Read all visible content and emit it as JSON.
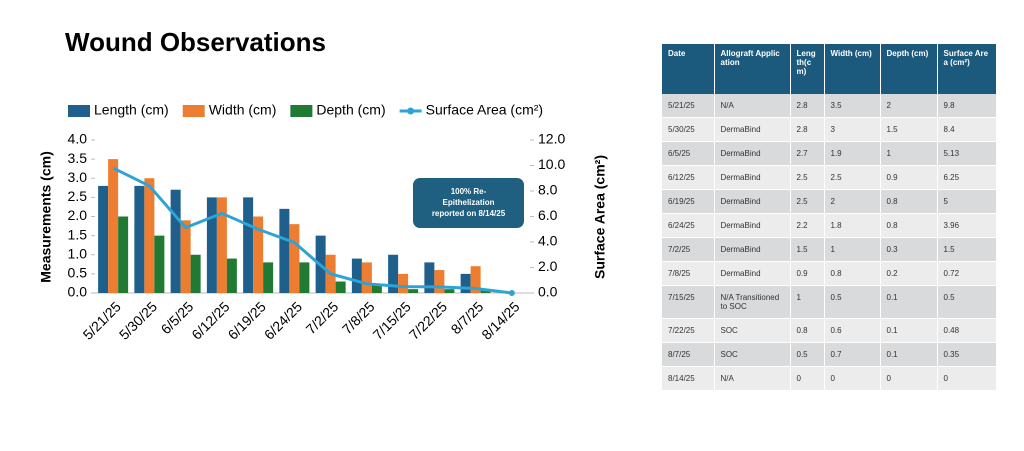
{
  "chart_data": {
    "type": "bar",
    "title": "Wound Observations",
    "categories": [
      "5/21/25",
      "5/30/25",
      "6/5/25",
      "6/12/25",
      "6/19/25",
      "6/24/25",
      "7/2/25",
      "7/8/25",
      "7/15/25",
      "7/22/25",
      "8/7/25",
      "8/14/25"
    ],
    "series": [
      {
        "name": "Length (cm)",
        "color": "#1f5f8b",
        "values": [
          2.8,
          2.8,
          2.7,
          2.5,
          2.5,
          2.2,
          1.5,
          0.9,
          1,
          0.8,
          0.5,
          0
        ]
      },
      {
        "name": "Width (cm)",
        "color": "#ed7d31",
        "values": [
          3.5,
          3,
          1.9,
          2.5,
          2,
          1.8,
          1,
          0.8,
          0.5,
          0.6,
          0.7,
          0
        ]
      },
      {
        "name": "Depth (cm)",
        "color": "#217a34",
        "values": [
          2,
          1.5,
          1,
          0.9,
          0.8,
          0.8,
          0.3,
          0.2,
          0.1,
          0.1,
          0.1,
          0
        ]
      },
      {
        "name": "Surface Area (cm²)",
        "color": "#2ea3d6",
        "type": "line",
        "axis": "y2",
        "values": [
          9.8,
          8.4,
          5.13,
          6.25,
          5,
          3.96,
          1.5,
          0.72,
          0.5,
          0.48,
          0.35,
          0
        ]
      }
    ],
    "ylabel": "Measurements (cm)",
    "y2label": "Surface Area (cm²)",
    "ylim": [
      0,
      4
    ],
    "yticks": [
      {
        "value": 0,
        "label": "0.0"
      },
      {
        "value": 0.5,
        "label": "0.5"
      },
      {
        "value": 1,
        "label": "1.0"
      },
      {
        "value": 1.5,
        "label": "1.5"
      },
      {
        "value": 2,
        "label": "2.0"
      },
      {
        "value": 2.5,
        "label": "2.5"
      },
      {
        "value": 3,
        "label": "3.0"
      },
      {
        "value": 3.5,
        "label": "3.5"
      },
      {
        "value": 4,
        "label": "4.0"
      }
    ],
    "y2lim": [
      0,
      12
    ],
    "y2ticks": [
      {
        "value": 0,
        "label": "0.0"
      },
      {
        "value": 2,
        "label": "2.0"
      },
      {
        "value": 4,
        "label": "4.0"
      },
      {
        "value": 6,
        "label": "6.0"
      },
      {
        "value": 8,
        "label": "8.0"
      },
      {
        "value": 10,
        "label": "10.0"
      },
      {
        "value": 12,
        "label": "12.0"
      }
    ],
    "annotation": "100% Re-Epithelization reported on 8/14/25",
    "legend": "top"
  },
  "table": {
    "header": [
      "Date",
      "Allograft Application",
      "Length(cm)",
      "Width (cm)",
      "Depth (cm)",
      "Surface Area (cm²)"
    ],
    "rows": [
      [
        "5/21/25",
        "N/A",
        "2.8",
        "3.5",
        "2",
        "9.8"
      ],
      [
        "5/30/25",
        "DermaBind",
        "2.8",
        "3",
        "1.5",
        "8.4"
      ],
      [
        "6/5/25",
        "DermaBind",
        "2.7",
        "1.9",
        "1",
        "5.13"
      ],
      [
        "6/12/25",
        "DermaBind",
        "2.5",
        "2.5",
        "0.9",
        "6.25"
      ],
      [
        "6/19/25",
        "DermaBind",
        "2.5",
        "2",
        "0.8",
        "5"
      ],
      [
        "6/24/25",
        "DermaBind",
        "2.2",
        "1.8",
        "0.8",
        "3.96"
      ],
      [
        "7/2/25",
        "DermaBind",
        "1.5",
        "1",
        "0.3",
        "1.5"
      ],
      [
        "7/8/25",
        "DermaBind",
        "0.9",
        "0.8",
        "0.2",
        "0.72"
      ],
      [
        "7/15/25",
        "N/A Transitioned to SOC",
        "1",
        "0.5",
        "0.1",
        "0.5"
      ],
      [
        "7/22/25",
        "SOC",
        "0.8",
        "0.6",
        "0.1",
        "0.48"
      ],
      [
        "8/7/25",
        "SOC",
        "0.5",
        "0.7",
        "0.1",
        "0.35"
      ],
      [
        "8/14/25",
        "N/A",
        "0",
        "0",
        "0",
        "0"
      ]
    ]
  }
}
